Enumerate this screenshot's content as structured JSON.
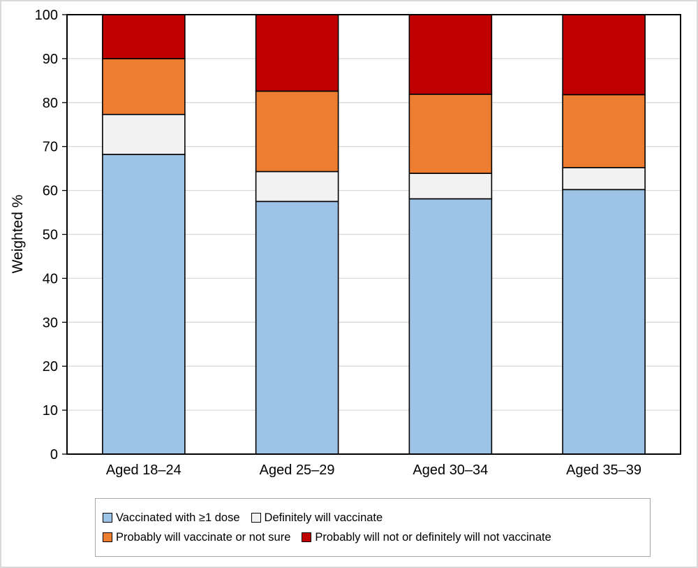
{
  "chart_data": {
    "type": "bar",
    "stacked": true,
    "title": "",
    "xlabel": "",
    "ylabel": "Weighted %",
    "ylim": [
      0,
      100
    ],
    "yticks": [
      0,
      10,
      20,
      30,
      40,
      50,
      60,
      70,
      80,
      90,
      100
    ],
    "grid": "horizontal",
    "legend_position": "bottom",
    "categories": [
      "Aged 18–24",
      "Aged 25–29",
      "Aged 30–34",
      "Aged 35–39"
    ],
    "series": [
      {
        "name": "Vaccinated with ≥1 dose",
        "color": "#9DC3E6",
        "values": [
          68.2,
          57.5,
          58.1,
          60.2
        ]
      },
      {
        "name": "Definitely will vaccinate",
        "color": "#F2F2F2",
        "values": [
          9.1,
          6.8,
          5.8,
          5.0
        ]
      },
      {
        "name": "Probably will vaccinate or not sure",
        "color": "#ED7D31",
        "values": [
          12.7,
          18.3,
          18.0,
          16.6
        ]
      },
      {
        "name": "Probably will not or definitely will not vaccinate",
        "color": "#C00000",
        "values": [
          10.0,
          17.4,
          18.1,
          18.2
        ]
      }
    ],
    "style": {
      "grid_color": "#D9D9D9",
      "plot_border_color": "#000000",
      "bar_border_color": "#000000",
      "tick_color": "#000000",
      "text_color": "#000000",
      "legend_border_color": "#A6A6A6"
    }
  }
}
